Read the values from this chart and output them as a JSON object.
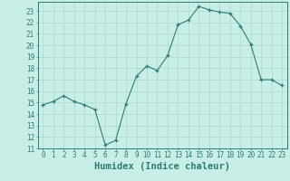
{
  "xlabel": "Humidex (Indice chaleur)",
  "ylabel": "",
  "x": [
    0,
    1,
    2,
    3,
    4,
    5,
    6,
    7,
    8,
    9,
    10,
    11,
    12,
    13,
    14,
    15,
    16,
    17,
    18,
    19,
    20,
    21,
    22,
    23
  ],
  "y": [
    14.8,
    15.1,
    15.6,
    15.1,
    14.8,
    14.4,
    11.3,
    11.7,
    14.9,
    17.3,
    18.2,
    17.8,
    19.1,
    21.8,
    22.2,
    23.4,
    23.1,
    22.9,
    22.8,
    21.7,
    20.1,
    17.0,
    17.0,
    16.5
  ],
  "line_color": "#2e7d6e",
  "marker": "+",
  "marker_size": 3,
  "markeredgewidth": 0.9,
  "linewidth": 0.8,
  "bg_color": "#c8eee8",
  "grid_color": "#aed8d0",
  "ylim": [
    11,
    23.8
  ],
  "xlim": [
    -0.5,
    23.5
  ],
  "yticks": [
    11,
    12,
    13,
    14,
    15,
    16,
    17,
    18,
    19,
    20,
    21,
    22,
    23
  ],
  "xticks": [
    0,
    1,
    2,
    3,
    4,
    5,
    6,
    7,
    8,
    9,
    10,
    11,
    12,
    13,
    14,
    15,
    16,
    17,
    18,
    19,
    20,
    21,
    22,
    23
  ],
  "xtick_labels": [
    "0",
    "1",
    "2",
    "3",
    "4",
    "5",
    "6",
    "7",
    "8",
    "9",
    "10",
    "11",
    "12",
    "13",
    "14",
    "15",
    "16",
    "17",
    "18",
    "19",
    "20",
    "21",
    "22",
    "23"
  ],
  "tick_color": "#2e7d6e",
  "axis_color": "#2e7d6e",
  "tick_fontsize": 5.5,
  "xlabel_fontsize": 7.5
}
